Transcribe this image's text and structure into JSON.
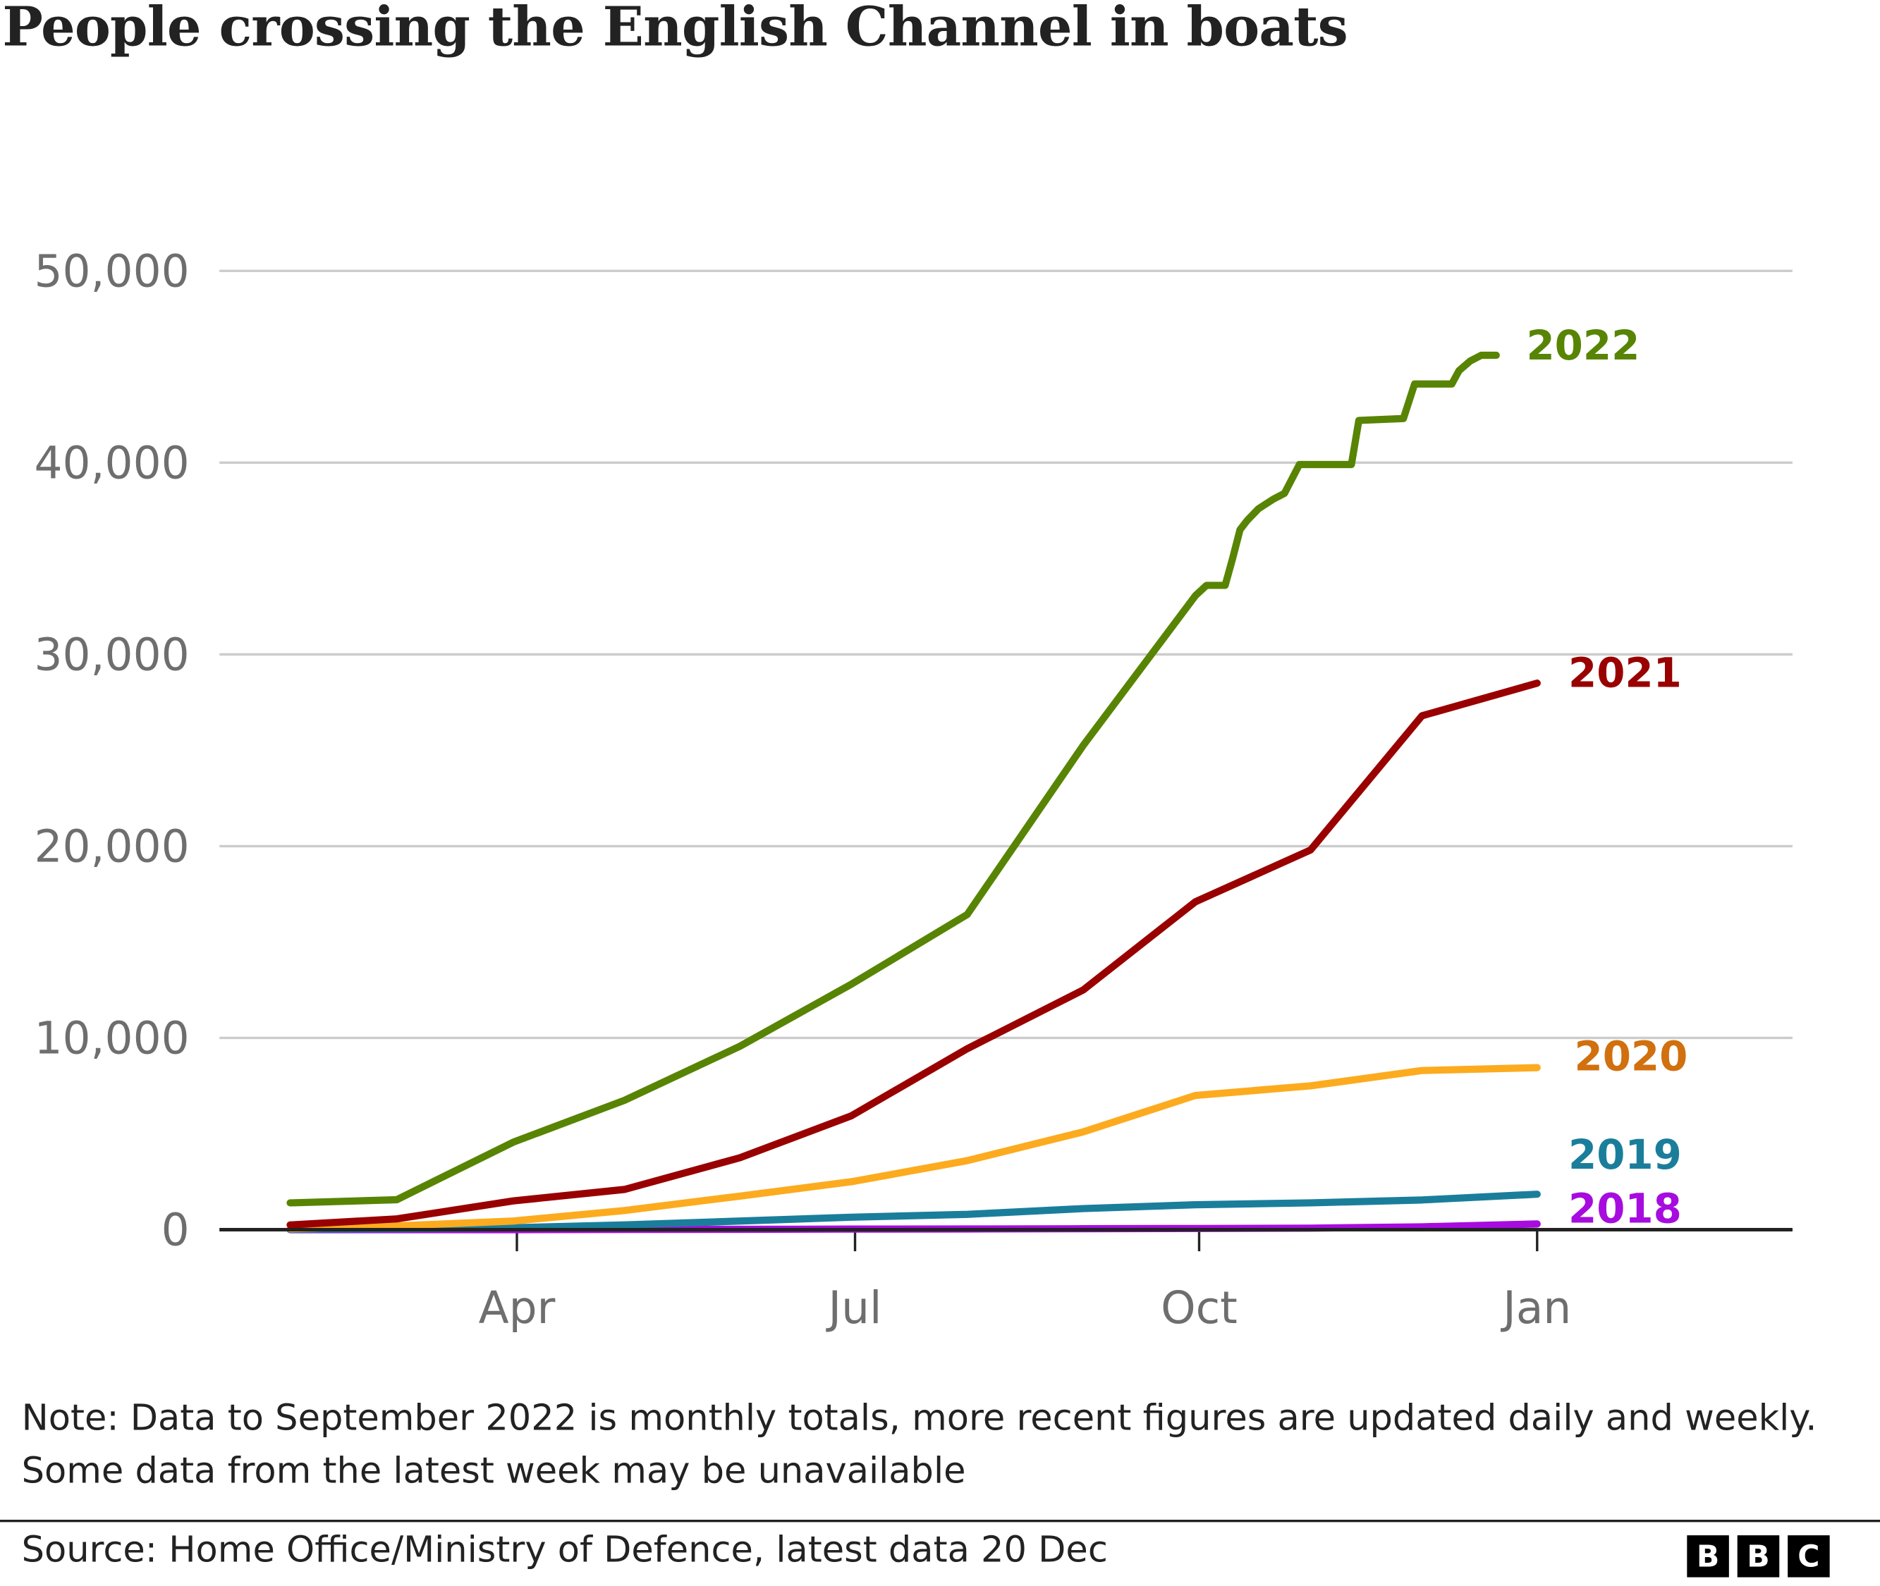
{
  "title": "People crossing the English Channel in boats",
  "note": "Note: Data to September 2022 is monthly totals, more recent figures are updated daily and weekly. Some data from the latest week may be unavailable",
  "source": "Source: Home Office/Ministry of Defence, latest data 20 Dec",
  "logo": [
    "B",
    "B",
    "C"
  ],
  "chart_data": {
    "type": "line",
    "title": "People crossing the English Channel in boats",
    "xlabel": "",
    "ylabel": "",
    "ylim": [
      0,
      50000
    ],
    "grid": true,
    "legend": "inline labels at line ends",
    "y_ticks": [
      "0",
      "10,000",
      "20,000",
      "30,000",
      "40,000",
      "50,000"
    ],
    "y_tick_values": [
      0,
      10000,
      20000,
      30000,
      40000,
      50000
    ],
    "x_ticks": [
      "Apr",
      "Jul",
      "Oct",
      "Jan"
    ],
    "x_tick_dates": [
      "04-01",
      "07-01",
      "10-01",
      "12-31"
    ],
    "series": [
      {
        "name": "2018",
        "color": "#a70cdf",
        "x": [
          "01-31",
          "02-28",
          "03-31",
          "04-30",
          "05-31",
          "06-30",
          "07-31",
          "08-31",
          "09-30",
          "10-31",
          "11-30",
          "12-31"
        ],
        "values": [
          0,
          0,
          0,
          10,
          20,
          30,
          40,
          50,
          60,
          80,
          150,
          300
        ]
      },
      {
        "name": "2019",
        "color": "#1a7e9b",
        "x": [
          "01-31",
          "02-28",
          "03-31",
          "04-30",
          "05-31",
          "06-30",
          "07-31",
          "08-31",
          "09-30",
          "10-31",
          "11-30",
          "12-31"
        ],
        "values": [
          20,
          50,
          100,
          250,
          450,
          650,
          800,
          1100,
          1300,
          1400,
          1550,
          1850
        ]
      },
      {
        "name": "2020",
        "color": "#fcab1f",
        "label_color": "#d1700e",
        "x": [
          "01-31",
          "02-28",
          "03-31",
          "04-30",
          "05-31",
          "06-30",
          "07-31",
          "08-31",
          "09-30",
          "10-31",
          "11-30",
          "12-31"
        ],
        "values": [
          50,
          200,
          450,
          1000,
          1750,
          2500,
          3600,
          5100,
          7000,
          7500,
          8300,
          8450
        ]
      },
      {
        "name": "2021",
        "color": "#990000",
        "x": [
          "01-31",
          "02-28",
          "03-31",
          "04-30",
          "05-31",
          "06-30",
          "07-31",
          "08-31",
          "09-30",
          "10-31",
          "11-30",
          "12-31"
        ],
        "values": [
          250,
          560,
          1500,
          2100,
          3750,
          5940,
          9440,
          12500,
          17100,
          19800,
          26800,
          28500
        ]
      },
      {
        "name": "2022",
        "color": "#588404",
        "x": [
          "01-31",
          "02-28",
          "03-31",
          "04-30",
          "05-31",
          "06-30",
          "07-31",
          "08-31",
          "09-30",
          "10-03",
          "10-08",
          "10-10",
          "10-12",
          "10-14",
          "10-17",
          "10-21",
          "10-24",
          "10-28",
          "11-11",
          "11-13",
          "11-25",
          "11-28",
          "12-08",
          "12-10",
          "12-13",
          "12-16",
          "12-20"
        ],
        "values": [
          1400,
          1560,
          4560,
          6750,
          9560,
          12800,
          16440,
          25250,
          33060,
          33600,
          33600,
          35000,
          36500,
          37000,
          37600,
          38100,
          38400,
          39900,
          39900,
          42200,
          42300,
          44100,
          44100,
          44800,
          45300,
          45600,
          45600
        ]
      }
    ]
  }
}
